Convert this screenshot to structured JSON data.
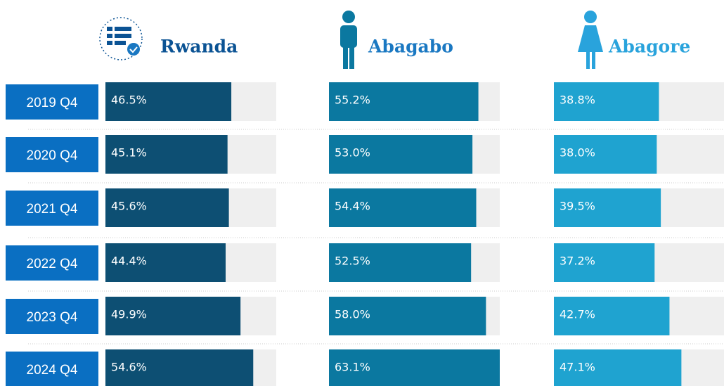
{
  "chart_data": {
    "type": "bar",
    "categories": [
      "2019 Q4",
      "2020 Q4",
      "2021 Q4",
      "2022 Q4",
      "2023 Q4",
      "2024 Q4"
    ],
    "xlim": [
      0,
      63.1
    ],
    "series": [
      {
        "name": "Rwanda",
        "color": "#0d4f73",
        "values": [
          46.5,
          45.1,
          45.6,
          44.4,
          49.9,
          54.6
        ],
        "value_labels": [
          "46.5%",
          "45.1%",
          "45.6%",
          "44.4%",
          "49.9%",
          "54.6%"
        ]
      },
      {
        "name": "Abagabo",
        "color": "#0b78a0",
        "values": [
          55.2,
          53.0,
          54.4,
          52.5,
          58.0,
          63.1
        ],
        "value_labels": [
          "55.2%",
          "53.0%",
          "54.4%",
          "52.5%",
          "58.0%",
          "63.1%"
        ]
      },
      {
        "name": "Abagore",
        "color": "#1fa3d0",
        "values": [
          38.8,
          38.0,
          39.5,
          37.2,
          42.7,
          47.1
        ],
        "value_labels": [
          "38.8%",
          "38.0%",
          "39.5%",
          "37.2%",
          "42.7%",
          "47.1%"
        ]
      }
    ]
  }
}
